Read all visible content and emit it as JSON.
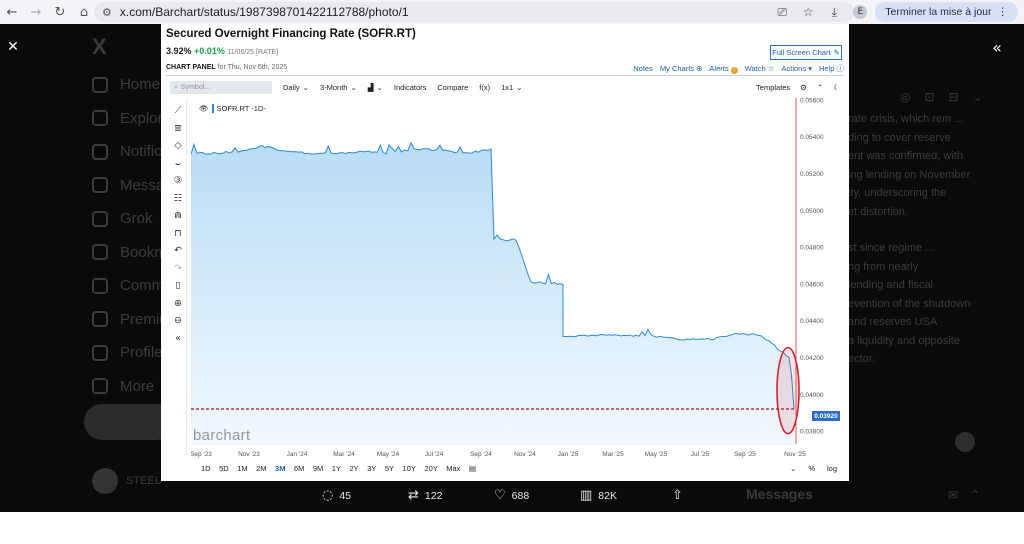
{
  "browser": {
    "url": "x.com/Barchart/status/1987398701422112788/photo/1",
    "profile_initial": "E",
    "update_label": "Terminer la mise à jour"
  },
  "background": {
    "nav_items": [
      "Home",
      "Explore",
      "Notifications",
      "Messages",
      "Grok",
      "Bookmarks",
      "Communities",
      "Premium",
      "Profile",
      "More"
    ],
    "user_label": "STEEL",
    "right_text": [
      "rate crisis, which rem ...",
      "ding to cover reserve",
      "ent was confirmed, with",
      "ing lending on November",
      "ity, underscoring the",
      "et distortion."
    ],
    "right_text2": [
      "st since regime ...",
      "ng from nearly",
      "lending and fiscal",
      "evention of the shutdown",
      "and reserves USA",
      "a liquidity and opposite",
      "ector."
    ],
    "messages_label": "Messages"
  },
  "engagement": {
    "replies": "45",
    "reposts": "122",
    "likes": "688",
    "views": "82K"
  },
  "chart": {
    "title": "Secured Overnight Financing Rate (SOFR.RT)",
    "price": "3.92%",
    "change": "+0.01%",
    "meta": "11/06/25 [RATE]",
    "fullscreen_label": "Full Screen Chart",
    "panel_label": "CHART PANEL",
    "panel_date": "for Thu, Nov 6th, 2025",
    "links": [
      "Notes",
      "My Charts",
      "Alerts",
      "Watch",
      "Actions",
      "Help"
    ],
    "symbol_placeholder": "Symbol...",
    "toolbar": [
      "Daily",
      "3-Month",
      "Indicators",
      "Compare",
      "f(x)",
      "1x1"
    ],
    "templates_label": "Templates",
    "legend": "SOFR.RT -1D-",
    "watermark": "barchart",
    "last_price_tag": "0.03920",
    "timeframes": [
      "1D",
      "5D",
      "1M",
      "2M",
      "3M",
      "6M",
      "9M",
      "1Y",
      "2Y",
      "3Y",
      "5Y",
      "10Y",
      "20Y",
      "Max"
    ],
    "selected_timeframe": "3M",
    "scale_options": [
      "%",
      "log"
    ],
    "accent_color": "#2b8cd6",
    "highlight_color": "#d8202f"
  },
  "chart_data": {
    "type": "area",
    "title": "Secured Overnight Financing Rate (SOFR.RT)",
    "x_ticks": [
      "Sep '23",
      "Nov '23",
      "Jan '24",
      "Mar '24",
      "May '24",
      "Jul '24",
      "Sep '24",
      "Nov '24",
      "Jan '25",
      "Mar '25",
      "May '25",
      "Jul '25",
      "Sep '25",
      "Nov '25"
    ],
    "y_ticks": [
      "0.05600",
      "0.05400",
      "0.05200",
      "0.05000",
      "0.04800",
      "0.04600",
      "0.04400",
      "0.04200",
      "0.04000",
      "0.03800"
    ],
    "ylim": [
      0.0373,
      0.0561
    ],
    "x": [
      "Sep '23",
      "Oct '23",
      "Nov '23",
      "Dec '23",
      "Jan '24",
      "Feb '24",
      "Mar '24",
      "Apr '24",
      "May '24",
      "Jun '24",
      "Jul '24",
      "Aug '24",
      "Sep '24",
      "mid Sep '24",
      "Oct '24",
      "Nov '24",
      "Dec '24",
      "Jan '25",
      "Feb '25",
      "Mar '25",
      "Apr '25",
      "May '25",
      "Jun '25",
      "Jul '25",
      "Aug '25",
      "Sep '25",
      "Oct '25",
      "Nov '25"
    ],
    "values": [
      0.0531,
      0.0531,
      0.0532,
      0.0535,
      0.0532,
      0.0531,
      0.0531,
      0.0532,
      0.0531,
      0.0533,
      0.0533,
      0.0531,
      0.0533,
      0.0484,
      0.0484,
      0.0461,
      0.046,
      0.0431,
      0.0432,
      0.0432,
      0.0432,
      0.043,
      0.043,
      0.0433,
      0.0432,
      0.043,
      0.042,
      0.0392
    ],
    "last_value": 0.0392,
    "reference_line": 0.0392,
    "grid": false
  }
}
